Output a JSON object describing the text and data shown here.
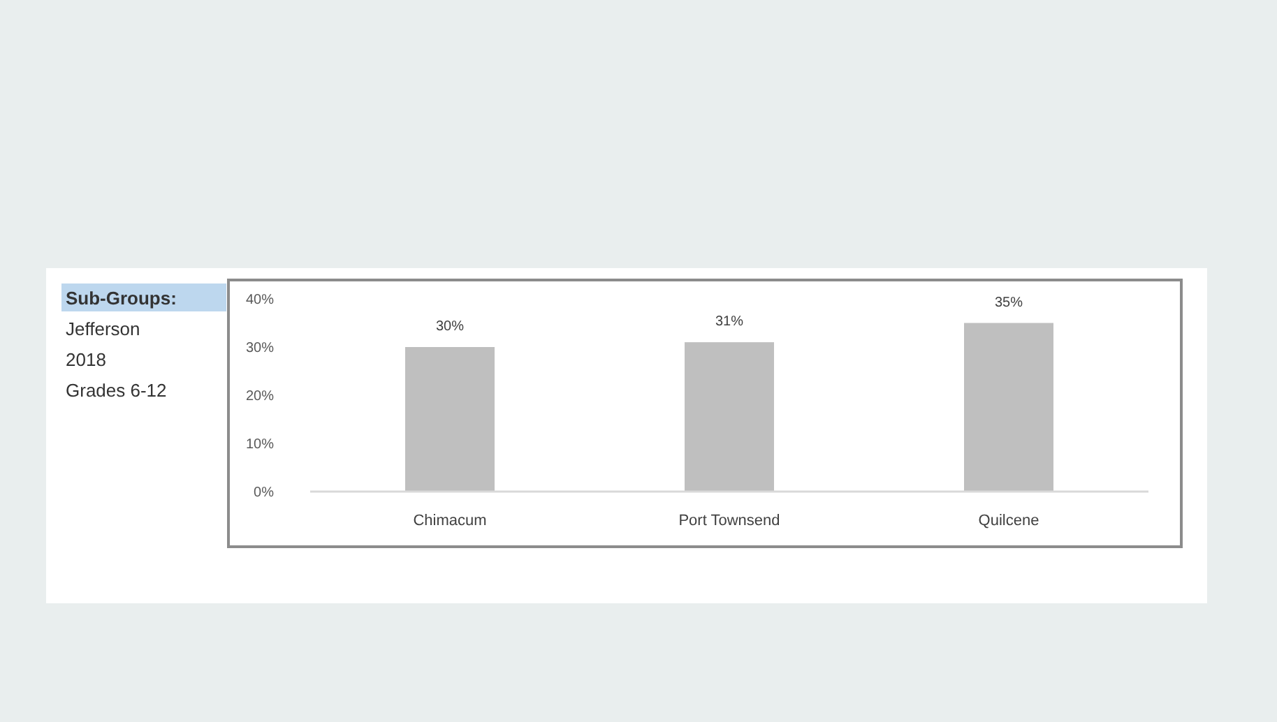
{
  "chart_data": {
    "type": "bar",
    "categories": [
      "Chimacum",
      "Port Townsend",
      "Quilcene"
    ],
    "values": [
      30,
      31,
      35
    ],
    "color": "#bfbfbf",
    "value_labels": [
      "30%",
      "31%",
      "35%"
    ],
    "ylim": [
      0,
      40
    ],
    "yticks": [
      {
        "value": 0,
        "label": "0%"
      },
      {
        "value": 10,
        "label": "10%"
      },
      {
        "value": 20,
        "label": "20%"
      },
      {
        "value": 30,
        "label": "30%"
      },
      {
        "value": 40,
        "label": "40%"
      }
    ],
    "annotations": [
      "Sub-Groups:",
      "Jefferson",
      "2018",
      "Grades 6-12"
    ]
  }
}
